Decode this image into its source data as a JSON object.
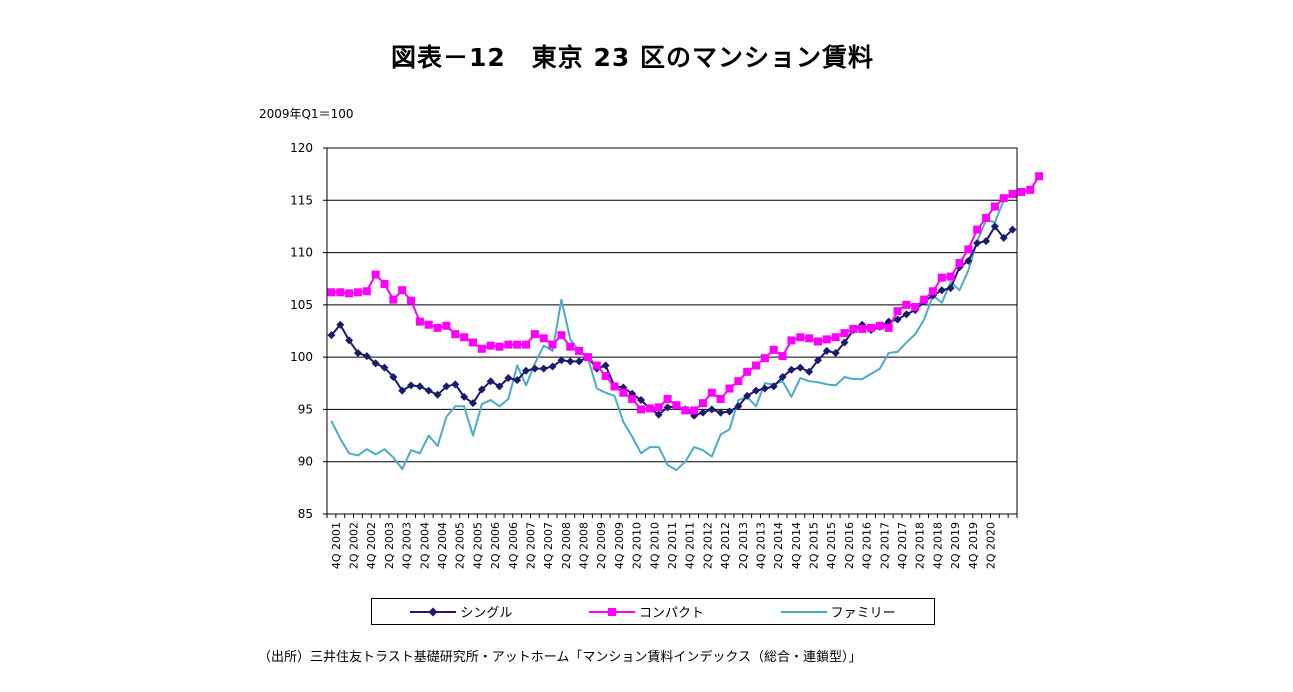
{
  "title": "図表－12　東京 23 区のマンション賃料",
  "unit_label": "2009年Q1＝100",
  "source": "（出所）三井住友トラスト基礎研究所・アットホーム「マンション賃料インデックス（総合・連鎖型）」",
  "chart_data": {
    "type": "line",
    "ylim": [
      85,
      120
    ],
    "yticks": [
      "85",
      "90",
      "95",
      "100",
      "105",
      "110",
      "115",
      "120"
    ],
    "grid": "horizontal",
    "legend_position": "bottom",
    "x_tick_labels": [
      "4Q 2001",
      "2Q 2002",
      "4Q 2002",
      "2Q 2003",
      "4Q 2003",
      "2Q 2004",
      "4Q 2004",
      "2Q 2005",
      "4Q 2005",
      "2Q 2006",
      "4Q 2006",
      "2Q 2007",
      "4Q 2007",
      "2Q 2008",
      "4Q 2008",
      "2Q 2009",
      "4Q 2009",
      "2Q 2010",
      "4Q 2010",
      "2Q 2011",
      "4Q 2011",
      "2Q 2012",
      "4Q 2012",
      "2Q 2013",
      "4Q 2013",
      "2Q 2014",
      "4Q 2014",
      "2Q 2015",
      "4Q 2015",
      "2Q 2016",
      "4Q 2016",
      "2Q 2017",
      "4Q 2017",
      "2Q 2018",
      "4Q 2018",
      "2Q 2019",
      "4Q 2019",
      "2Q 2020"
    ],
    "series": [
      {
        "name": "シングル",
        "color": "#1a1a6e",
        "marker": "diamond",
        "values": [
          102.1,
          103.1,
          101.6,
          100.4,
          100.1,
          99.4,
          99.0,
          98.1,
          96.8,
          97.3,
          97.2,
          96.8,
          96.4,
          97.2,
          97.4,
          96.2,
          95.6,
          96.9,
          97.7,
          97.2,
          98.0,
          97.8,
          98.7,
          98.9,
          98.9,
          99.1,
          99.7,
          99.6,
          99.6,
          100.0,
          98.9,
          99.2,
          97.2,
          97.1,
          96.5,
          95.9,
          95.1,
          94.5,
          95.2,
          95.3,
          95.0,
          94.4,
          94.7,
          95.0,
          94.7,
          94.8,
          95.3,
          96.3,
          96.8,
          97.0,
          97.2,
          98.1,
          98.8,
          99.0,
          98.6,
          99.7,
          100.6,
          100.4,
          101.4,
          102.6,
          103.1,
          102.6,
          102.9,
          103.4,
          103.6,
          104.1,
          104.5,
          105.3,
          105.9,
          106.4,
          106.6,
          108.6,
          109.2,
          110.9,
          111.1,
          112.5,
          111.4,
          112.2
        ]
      },
      {
        "name": "コンパクト",
        "color": "#ff00ff",
        "marker": "square",
        "values": [
          106.2,
          106.2,
          106.1,
          106.2,
          106.3,
          107.9,
          107.0,
          105.5,
          106.4,
          105.4,
          103.4,
          103.1,
          102.8,
          103.0,
          102.2,
          101.9,
          101.4,
          100.8,
          101.1,
          101.0,
          101.2,
          101.2,
          101.2,
          102.2,
          101.8,
          101.2,
          102.1,
          101.0,
          100.6,
          100.0,
          99.2,
          98.2,
          97.2,
          96.6,
          96.0,
          95.0,
          95.1,
          95.2,
          96.0,
          95.4,
          94.9,
          94.9,
          95.6,
          96.6,
          96.0,
          97.0,
          97.7,
          98.6,
          99.2,
          99.9,
          100.7,
          100.1,
          101.6,
          101.9,
          101.8,
          101.5,
          101.7,
          101.9,
          102.3,
          102.7,
          102.7,
          102.8,
          103.0,
          102.8,
          104.4,
          105.0,
          104.8,
          105.5,
          106.3,
          107.6,
          107.7,
          109.0,
          110.3,
          112.2,
          113.3,
          114.4,
          115.2,
          115.6,
          115.8,
          116.0,
          117.3
        ]
      },
      {
        "name": "ファミリー",
        "color": "#4bacc6",
        "marker": "none",
        "values": [
          93.9,
          92.2,
          90.8,
          90.6,
          91.2,
          90.7,
          91.2,
          90.4,
          89.3,
          91.1,
          90.8,
          92.5,
          91.5,
          94.3,
          95.3,
          95.3,
          92.5,
          95.5,
          95.9,
          95.3,
          96.0,
          99.2,
          97.3,
          99.4,
          101.1,
          100.6,
          105.5,
          101.7,
          100.6,
          99.9,
          97.0,
          96.6,
          96.3,
          93.8,
          92.4,
          90.8,
          91.4,
          91.4,
          89.7,
          89.2,
          90.0,
          91.4,
          91.1,
          90.5,
          92.6,
          93.1,
          95.9,
          96.2,
          95.3,
          97.5,
          97.4,
          97.7,
          96.2,
          98.0,
          97.7,
          97.6,
          97.4,
          97.3,
          98.1,
          97.9,
          97.9,
          98.4,
          98.9,
          100.4,
          100.5,
          101.4,
          102.2,
          103.6,
          105.9,
          105.2,
          107.2,
          106.4,
          108.3,
          111.1,
          113.1,
          112.9,
          115.0
        ]
      }
    ]
  }
}
